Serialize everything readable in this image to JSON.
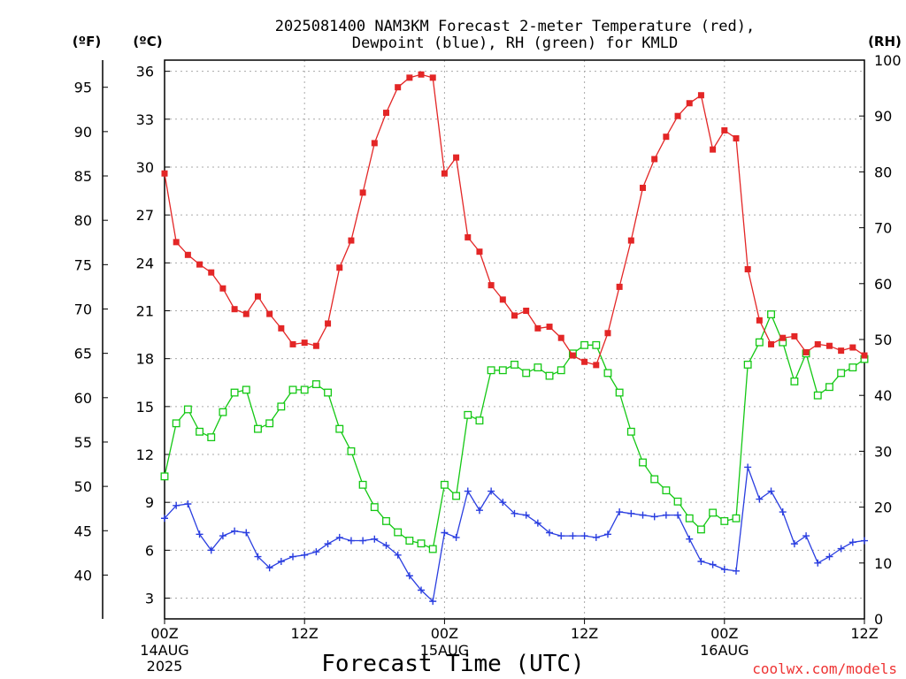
{
  "title_line1": "2025081400 NAM3KM Forecast 2-meter Temperature (red),",
  "title_line2": "Dewpoint (blue), RH (green) for KMLD",
  "credit": "coolwx.com/models",
  "colors": {
    "temperature": "#e32626",
    "dewpoint": "#2a3ee0",
    "rh": "#14c814"
  },
  "chart_data": {
    "type": "line",
    "title": "2025081400 NAM3KM Forecast 2-meter Temperature (red), Dewpoint (blue), RH (green) for KMLD",
    "xlabel": "Forecast Time (UTC)",
    "x_ticks": [
      {
        "hour": 0,
        "label": "00Z",
        "sub": [
          "14AUG",
          "2025"
        ]
      },
      {
        "hour": 12,
        "label": "12Z",
        "sub": []
      },
      {
        "hour": 24,
        "label": "00Z",
        "sub": [
          "15AUG"
        ]
      },
      {
        "hour": 36,
        "label": "12Z",
        "sub": []
      },
      {
        "hour": 48,
        "label": "00Z",
        "sub": [
          "16AUG"
        ]
      },
      {
        "hour": 60,
        "label": "12Z",
        "sub": []
      }
    ],
    "x_range_hours": [
      0,
      60
    ],
    "y_axes": {
      "fahrenheit": {
        "label": "(ºF)",
        "ticks": [
          40,
          45,
          50,
          55,
          60,
          65,
          70,
          75,
          80,
          85,
          90,
          95
        ]
      },
      "celsius": {
        "label": "(ºC)",
        "ticks": [
          3,
          6,
          9,
          12,
          15,
          18,
          21,
          24,
          27,
          30,
          33,
          36
        ],
        "range": [
          1.7,
          36.7
        ]
      },
      "rh": {
        "label": "(RH)",
        "ticks": [
          0,
          10,
          20,
          30,
          40,
          50,
          60,
          70,
          80,
          90,
          100
        ],
        "range": [
          0,
          100
        ]
      }
    },
    "grid": true,
    "x_hours": [
      0,
      1,
      2,
      3,
      4,
      5,
      6,
      7,
      8,
      9,
      10,
      11,
      12,
      13,
      14,
      15,
      16,
      17,
      18,
      19,
      20,
      21,
      22,
      23,
      24,
      25,
      26,
      27,
      28,
      29,
      30,
      31,
      32,
      33,
      34,
      35,
      36,
      37,
      38,
      39,
      40,
      41,
      42,
      43,
      44,
      45,
      46,
      47,
      48,
      49,
      50,
      51,
      52,
      53,
      54,
      55,
      56,
      57,
      58,
      59,
      60
    ],
    "series": [
      {
        "name": "Temperature",
        "units": "ºC",
        "values": [
          29.6,
          25.3,
          24.5,
          23.9,
          23.4,
          22.4,
          21.1,
          20.8,
          21.9,
          20.8,
          19.9,
          18.9,
          19.0,
          18.8,
          20.2,
          23.7,
          25.4,
          28.4,
          31.5,
          33.4,
          35.0,
          35.6,
          35.8,
          35.6,
          29.6,
          30.6,
          25.6,
          24.7,
          22.6,
          21.7,
          20.7,
          21.0,
          19.9,
          20.0,
          19.3,
          18.2,
          17.8,
          17.6,
          19.6,
          22.5,
          25.4,
          28.7,
          30.5,
          31.9,
          33.2,
          34.0,
          34.5,
          31.1,
          32.3,
          31.8,
          23.6,
          20.4,
          18.9,
          19.3,
          19.4,
          18.4,
          18.9,
          18.8,
          18.5,
          18.7,
          18.2
        ]
      },
      {
        "name": "Dewpoint",
        "units": "ºC",
        "values": [
          8.0,
          8.8,
          8.9,
          7.0,
          6.0,
          6.9,
          7.2,
          7.1,
          5.6,
          4.9,
          5.3,
          5.6,
          5.7,
          5.9,
          6.4,
          6.8,
          6.6,
          6.6,
          6.7,
          6.3,
          5.7,
          4.4,
          3.5,
          2.8,
          7.1,
          6.8,
          9.7,
          8.5,
          9.7,
          9.0,
          8.3,
          8.2,
          7.7,
          7.1,
          6.9,
          6.9,
          6.9,
          6.8,
          7.0,
          8.4,
          8.3,
          8.2,
          8.1,
          8.2,
          8.2,
          6.7,
          5.3,
          5.1,
          4.8,
          4.7,
          11.2,
          9.2,
          9.7,
          8.4,
          6.4,
          6.9,
          5.2,
          5.6,
          6.1,
          6.5,
          6.6
        ]
      },
      {
        "name": "RH",
        "units": "%",
        "values": [
          25.5,
          35.0,
          37.5,
          33.5,
          32.5,
          37.0,
          40.5,
          41.0,
          34.0,
          35.0,
          38.0,
          41.0,
          41.0,
          42.0,
          40.5,
          34.0,
          30.0,
          24.0,
          20.0,
          17.5,
          15.5,
          14.0,
          13.5,
          12.5,
          24.0,
          22.0,
          36.5,
          35.5,
          44.5,
          44.5,
          45.5,
          44.0,
          45.0,
          43.5,
          44.5,
          47.5,
          49.0,
          49.0,
          44.0,
          40.5,
          33.5,
          28.0,
          25.0,
          23.0,
          21.0,
          18.0,
          16.0,
          19.0,
          17.5,
          18.0,
          45.5,
          49.5,
          54.5,
          49.5,
          42.5,
          47.5,
          40.0,
          41.5,
          44.0,
          45.0,
          46.5
        ]
      }
    ]
  }
}
